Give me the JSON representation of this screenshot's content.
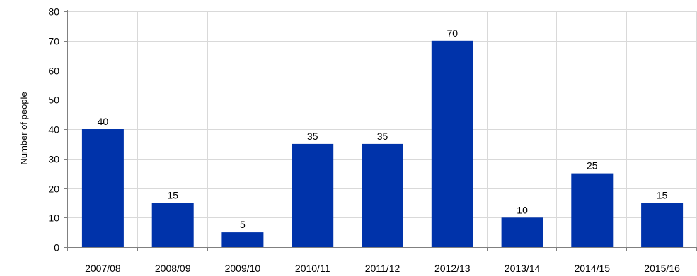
{
  "chart_data": {
    "type": "bar",
    "title": "",
    "xlabel": "",
    "ylabel": "Number of people",
    "categories": [
      "2007/08",
      "2008/09",
      "2009/10",
      "2010/11",
      "2011/12",
      "2012/13",
      "2013/14",
      "2014/15",
      "2015/16"
    ],
    "values": [
      40,
      15,
      5,
      35,
      35,
      70,
      10,
      25,
      15
    ],
    "ylim": [
      0,
      80
    ],
    "yticks": [
      0,
      10,
      20,
      30,
      40,
      50,
      60,
      70,
      80
    ],
    "grid": true,
    "bar_color": "#0033AA",
    "grid_color": "#D9D9D9",
    "axis_color": "#808080",
    "data_labels": true
  }
}
